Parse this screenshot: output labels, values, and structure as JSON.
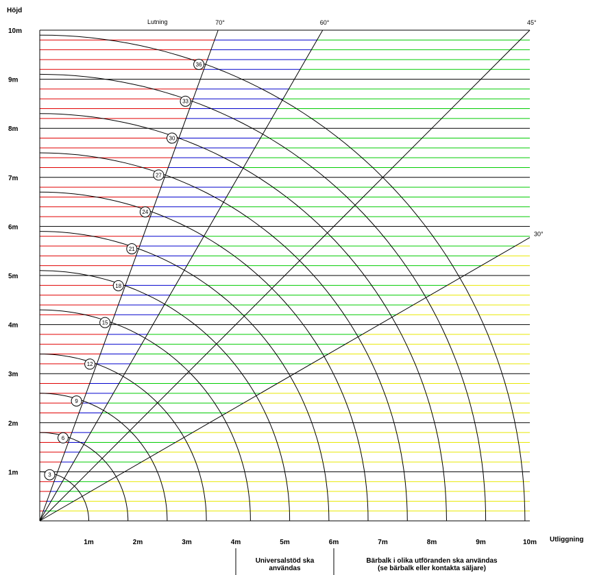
{
  "chart_data": {
    "type": "line",
    "title": "",
    "ylabel": "Höjd",
    "xlabel": "Utliggning",
    "xlim": [
      0,
      10
    ],
    "ylim": [
      0,
      10
    ],
    "grid": true,
    "x_ticks": [
      "1m",
      "2m",
      "3m",
      "4m",
      "5m",
      "6m",
      "7m",
      "8m",
      "9m",
      "10m"
    ],
    "y_ticks": [
      "1m",
      "2m",
      "3m",
      "4m",
      "5m",
      "6m",
      "7m",
      "8m",
      "9m",
      "10m"
    ],
    "angle_annotation": "Lutning",
    "angle_lines": [
      {
        "label": "70°",
        "angle": 70
      },
      {
        "label": "60°",
        "angle": 60
      },
      {
        "label": "45°",
        "angle": 45
      },
      {
        "label": "30°",
        "angle": 30
      }
    ],
    "arc_labels": [
      "3",
      "6",
      "9",
      "12",
      "15",
      "18",
      "21",
      "24",
      "27",
      "30",
      "33",
      "36"
    ],
    "arc_radii": [
      1.0,
      1.8,
      2.6,
      3.4,
      4.3,
      5.1,
      5.9,
      6.7,
      7.5,
      8.3,
      9.1,
      9.9
    ],
    "zones": [
      {
        "name": "above 70°",
        "color": "#e00000"
      },
      {
        "name": "60°–70°",
        "color": "#0000cc"
      },
      {
        "name": "30°–60°",
        "color": "#00cc00"
      },
      {
        "name": "below 30°",
        "color": "#e8e800"
      }
    ],
    "notes": [
      {
        "range": [
          4,
          6
        ],
        "lines": [
          "Universalstöd ska",
          "användas"
        ]
      },
      {
        "range": [
          6,
          10
        ],
        "lines": [
          "Bärbalk i olika utföranden ska användas",
          "(se bärbalk eller kontakta säljare)"
        ]
      }
    ]
  }
}
